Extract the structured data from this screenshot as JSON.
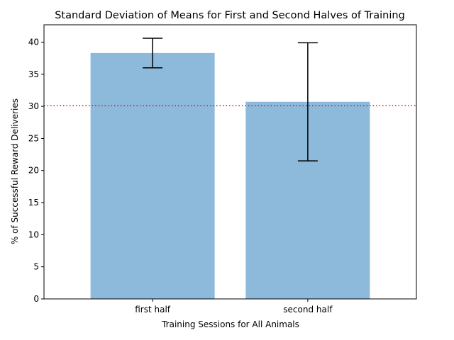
{
  "chart_data": {
    "type": "bar",
    "title": "Standard Deviation of Means for First and Second Halves of Training",
    "xlabel": "Training Sessions for All Animals",
    "ylabel": "% of Successful Reward Deliveries",
    "categories": [
      "first half",
      "second half"
    ],
    "values": [
      38.3,
      30.7
    ],
    "error": [
      2.3,
      9.2
    ],
    "ylim": [
      0,
      42.7
    ],
    "yticks": [
      0,
      5,
      10,
      15,
      20,
      25,
      30,
      35,
      40
    ],
    "reference_line": {
      "y": 30.1,
      "style": "dotted",
      "color": "#ff0000"
    },
    "bar_color": "#8db9da",
    "grid": false,
    "legend": "none"
  }
}
